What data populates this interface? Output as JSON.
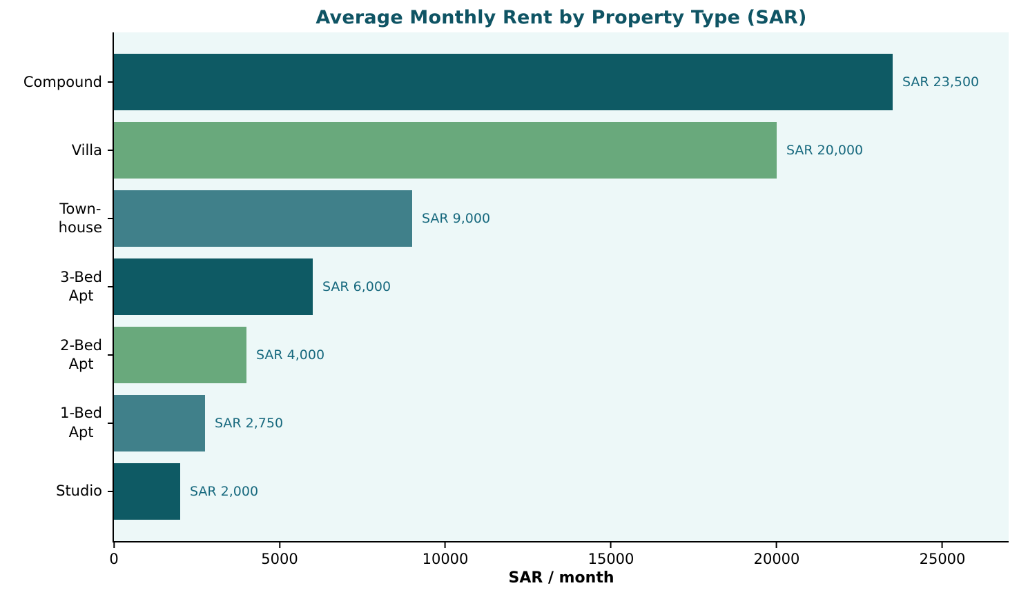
{
  "chart_data": {
    "type": "bar",
    "orientation": "horizontal",
    "title": "Average Monthly Rent by Property Type (SAR)",
    "xlabel": "SAR / month",
    "ylabel": "",
    "categories": [
      "Compound",
      "Villa",
      "Townhouse",
      "3-Bed Apt",
      "2-Bed Apt",
      "1-Bed Apt",
      "Studio"
    ],
    "category_display": [
      "Compound",
      "Villa",
      "Town-\nhouse",
      "3-Bed\nApt",
      "2-Bed\nApt",
      "1-Bed\nApt",
      "Studio"
    ],
    "values": [
      23500,
      20000,
      9000,
      6000,
      4000,
      2750,
      2000
    ],
    "value_labels": [
      "SAR 23,500",
      "SAR 20,000",
      "SAR 9,000",
      "SAR 6,000",
      "SAR 4,000",
      "SAR 2,750",
      "SAR 2,000"
    ],
    "x_ticks": [
      0,
      5000,
      10000,
      15000,
      20000,
      25000
    ],
    "x_tick_labels": [
      "0",
      "5000",
      "10000",
      "15000",
      "20000",
      "25000"
    ],
    "xlim": [
      0,
      27000
    ],
    "grid": false,
    "legend": "none",
    "colors": {
      "bar_palette": [
        "#0e5a64",
        "#69a97c",
        "#40808a"
      ],
      "value_label": "#17697e",
      "title": "#0f5464",
      "plot_background": "#edf8f8",
      "axis": "#000000"
    }
  }
}
